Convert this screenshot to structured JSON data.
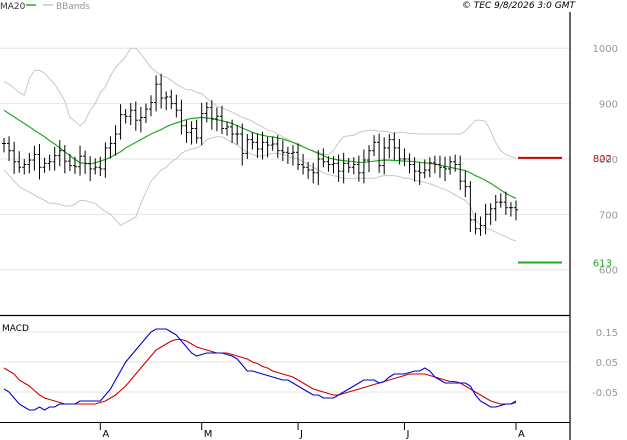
{
  "header": {
    "legend": [
      {
        "label": "MA20",
        "color": "#22aa22"
      },
      {
        "label": "BBands",
        "color": "#c8c8c8"
      }
    ],
    "copyright": "© TEC 9/8/2026 3:0 GMT"
  },
  "colors": {
    "price_bars": "#000000",
    "ma20": "#22aa22",
    "bbands": "#c8c8c8",
    "grid": "#e4e4e4",
    "frame": "#000000",
    "resistance": "#cc0000",
    "support": "#22aa22",
    "macd_line": "#0000cc",
    "signal_line": "#cc0000",
    "axis_text": "#999999"
  },
  "chart_data": [
    {
      "type": "ohlc",
      "panel": "price",
      "ylim": [
        520,
        1060
      ],
      "y_ticks": [
        {
          "value": 1000,
          "label": "1000"
        },
        {
          "value": 900,
          "label": "900"
        },
        {
          "value": 800,
          "label": "800"
        },
        {
          "value": 700,
          "label": "700"
        },
        {
          "value": 600,
          "label": "600"
        }
      ],
      "levels": [
        {
          "value": 802,
          "label": "802",
          "role": "resistance"
        },
        {
          "value": 613,
          "label": "613",
          "role": "support"
        }
      ],
      "x_ticks": [
        {
          "index": 19,
          "label": "A"
        },
        {
          "index": 39,
          "label": "M"
        },
        {
          "index": 58,
          "label": "J"
        },
        {
          "index": 79,
          "label": "J"
        },
        {
          "index": 101,
          "label": "A"
        }
      ],
      "closes": [
        828,
        815,
        795,
        785,
        790,
        798,
        808,
        785,
        792,
        795,
        806,
        815,
        796,
        788,
        786,
        805,
        792,
        782,
        785,
        782,
        820,
        828,
        845,
        880,
        877,
        888,
        870,
        875,
        890,
        902,
        935,
        910,
        912,
        900,
        888,
        860,
        848,
        855,
        838,
        882,
        893,
        872,
        877,
        855,
        858,
        845,
        845,
        810,
        835,
        830,
        818,
        830,
        825,
        827,
        815,
        812,
        810,
        812,
        790,
        785,
        780,
        775,
        800,
        795,
        790,
        792,
        778,
        792,
        785,
        790,
        775,
        798,
        815,
        830,
        788,
        820,
        835,
        820,
        800,
        800,
        790,
        778,
        775,
        780,
        793,
        790,
        785,
        782,
        795,
        790,
        760,
        750,
        690,
        674,
        680,
        700,
        710,
        722,
        722,
        712,
        712,
        708
      ],
      "series": [
        {
          "name": "MA20",
          "values": [
            888,
            882,
            876,
            870,
            864,
            858,
            852,
            846,
            840,
            833,
            827,
            820,
            813,
            806,
            799,
            793,
            792,
            791,
            793,
            796,
            799,
            803,
            808,
            813,
            820,
            825,
            830,
            835,
            840,
            845,
            849,
            853,
            858,
            862,
            865,
            868,
            871,
            873,
            874,
            875,
            874,
            873,
            871,
            869,
            867,
            864,
            860,
            856,
            852,
            848,
            845,
            843,
            841,
            840,
            838,
            836,
            833,
            830,
            826,
            822,
            818,
            814,
            810,
            806,
            802,
            800,
            798,
            797,
            796,
            795,
            794,
            794,
            795,
            796,
            797,
            798,
            798,
            797,
            797,
            796,
            796,
            795,
            794,
            793,
            792,
            791,
            789,
            787,
            785,
            783,
            781,
            779,
            775,
            770,
            766,
            761,
            756,
            750,
            744,
            738,
            733,
            729
          ]
        },
        {
          "name": "BBands upper",
          "values": [
            940,
            935,
            928,
            920,
            915,
            945,
            960,
            960,
            955,
            945,
            935,
            920,
            905,
            875,
            868,
            860,
            868,
            888,
            900,
            920,
            930,
            950,
            965,
            975,
            985,
            1000,
            1000,
            990,
            978,
            965,
            958,
            950,
            948,
            942,
            935,
            930,
            925,
            925,
            920,
            918,
            910,
            902,
            895,
            892,
            888,
            885,
            880,
            875,
            872,
            868,
            862,
            858,
            852,
            850,
            845,
            840,
            835,
            830,
            828,
            822,
            818,
            815,
            812,
            808,
            808,
            815,
            830,
            840,
            842,
            843,
            848,
            850,
            852,
            852,
            850,
            850,
            848,
            846,
            848,
            848,
            846,
            846,
            845,
            845,
            845,
            845,
            845,
            845,
            845,
            845,
            845,
            850,
            860,
            870,
            870,
            868,
            850,
            830,
            815,
            808,
            804,
            802
          ]
        },
        {
          "name": "BBands lower",
          "values": [
            780,
            770,
            760,
            750,
            745,
            740,
            735,
            730,
            725,
            720,
            720,
            718,
            715,
            715,
            718,
            725,
            725,
            722,
            720,
            712,
            705,
            700,
            690,
            680,
            685,
            690,
            695,
            720,
            740,
            760,
            770,
            780,
            785,
            795,
            800,
            810,
            815,
            818,
            820,
            825,
            835,
            838,
            840,
            840,
            835,
            830,
            825,
            818,
            812,
            808,
            805,
            805,
            808,
            810,
            810,
            808,
            805,
            802,
            800,
            795,
            790,
            785,
            780,
            775,
            772,
            770,
            768,
            765,
            765,
            765,
            765,
            765,
            765,
            765,
            768,
            770,
            770,
            770,
            768,
            765,
            765,
            762,
            760,
            758,
            755,
            752,
            748,
            745,
            740,
            735,
            730,
            725,
            715,
            690,
            680,
            675,
            672,
            668,
            663,
            660,
            655,
            652
          ]
        }
      ]
    },
    {
      "type": "line",
      "panel": "macd",
      "title": "MACD",
      "ylim": [
        -0.15,
        0.2
      ],
      "y_ticks": [
        {
          "value": 0.15,
          "label": "0.15"
        },
        {
          "value": 0.05,
          "label": "0.05"
        },
        {
          "value": -0.05,
          "label": "-0.05"
        }
      ],
      "series": [
        {
          "name": "MACD",
          "values": [
            -0.04,
            -0.05,
            -0.07,
            -0.09,
            -0.1,
            -0.11,
            -0.11,
            -0.1,
            -0.11,
            -0.1,
            -0.1,
            -0.09,
            -0.09,
            -0.09,
            -0.09,
            -0.08,
            -0.08,
            -0.08,
            -0.08,
            -0.08,
            -0.06,
            -0.04,
            -0.01,
            0.02,
            0.05,
            0.07,
            0.09,
            0.11,
            0.13,
            0.15,
            0.16,
            0.16,
            0.16,
            0.15,
            0.14,
            0.12,
            0.1,
            0.08,
            0.07,
            0.075,
            0.08,
            0.08,
            0.08,
            0.08,
            0.075,
            0.07,
            0.06,
            0.04,
            0.02,
            0.02,
            0.015,
            0.01,
            0.005,
            0.0,
            -0.005,
            -0.01,
            -0.01,
            -0.02,
            -0.03,
            -0.04,
            -0.05,
            -0.06,
            -0.06,
            -0.07,
            -0.07,
            -0.07,
            -0.06,
            -0.05,
            -0.04,
            -0.03,
            -0.02,
            -0.01,
            -0.01,
            -0.01,
            -0.02,
            -0.015,
            0.0,
            0.01,
            0.01,
            0.01,
            0.015,
            0.02,
            0.02,
            0.03,
            0.02,
            0.0,
            -0.01,
            -0.02,
            -0.02,
            -0.02,
            -0.02,
            -0.02,
            -0.03,
            -0.06,
            -0.08,
            -0.09,
            -0.1,
            -0.1,
            -0.095,
            -0.09,
            -0.09,
            -0.08
          ]
        },
        {
          "name": "Signal",
          "values": [
            0.03,
            0.02,
            0.01,
            -0.01,
            -0.02,
            -0.03,
            -0.045,
            -0.06,
            -0.07,
            -0.075,
            -0.08,
            -0.085,
            -0.09,
            -0.09,
            -0.09,
            -0.09,
            -0.09,
            -0.09,
            -0.09,
            -0.085,
            -0.08,
            -0.07,
            -0.06,
            -0.045,
            -0.03,
            -0.01,
            0.01,
            0.03,
            0.05,
            0.07,
            0.09,
            0.1,
            0.11,
            0.12,
            0.125,
            0.125,
            0.12,
            0.11,
            0.1,
            0.095,
            0.09,
            0.085,
            0.08,
            0.08,
            0.08,
            0.075,
            0.07,
            0.065,
            0.06,
            0.05,
            0.045,
            0.035,
            0.03,
            0.02,
            0.015,
            0.01,
            0.005,
            0.0,
            -0.01,
            -0.02,
            -0.03,
            -0.04,
            -0.045,
            -0.05,
            -0.055,
            -0.06,
            -0.06,
            -0.055,
            -0.05,
            -0.045,
            -0.04,
            -0.035,
            -0.03,
            -0.025,
            -0.02,
            -0.015,
            -0.01,
            -0.005,
            0.0,
            0.005,
            0.01,
            0.01,
            0.01,
            0.01,
            0.005,
            0.0,
            -0.005,
            -0.01,
            -0.015,
            -0.015,
            -0.02,
            -0.03,
            -0.04,
            -0.05,
            -0.06,
            -0.07,
            -0.08,
            -0.085,
            -0.09,
            -0.09,
            -0.09,
            -0.085
          ]
        }
      ]
    }
  ]
}
